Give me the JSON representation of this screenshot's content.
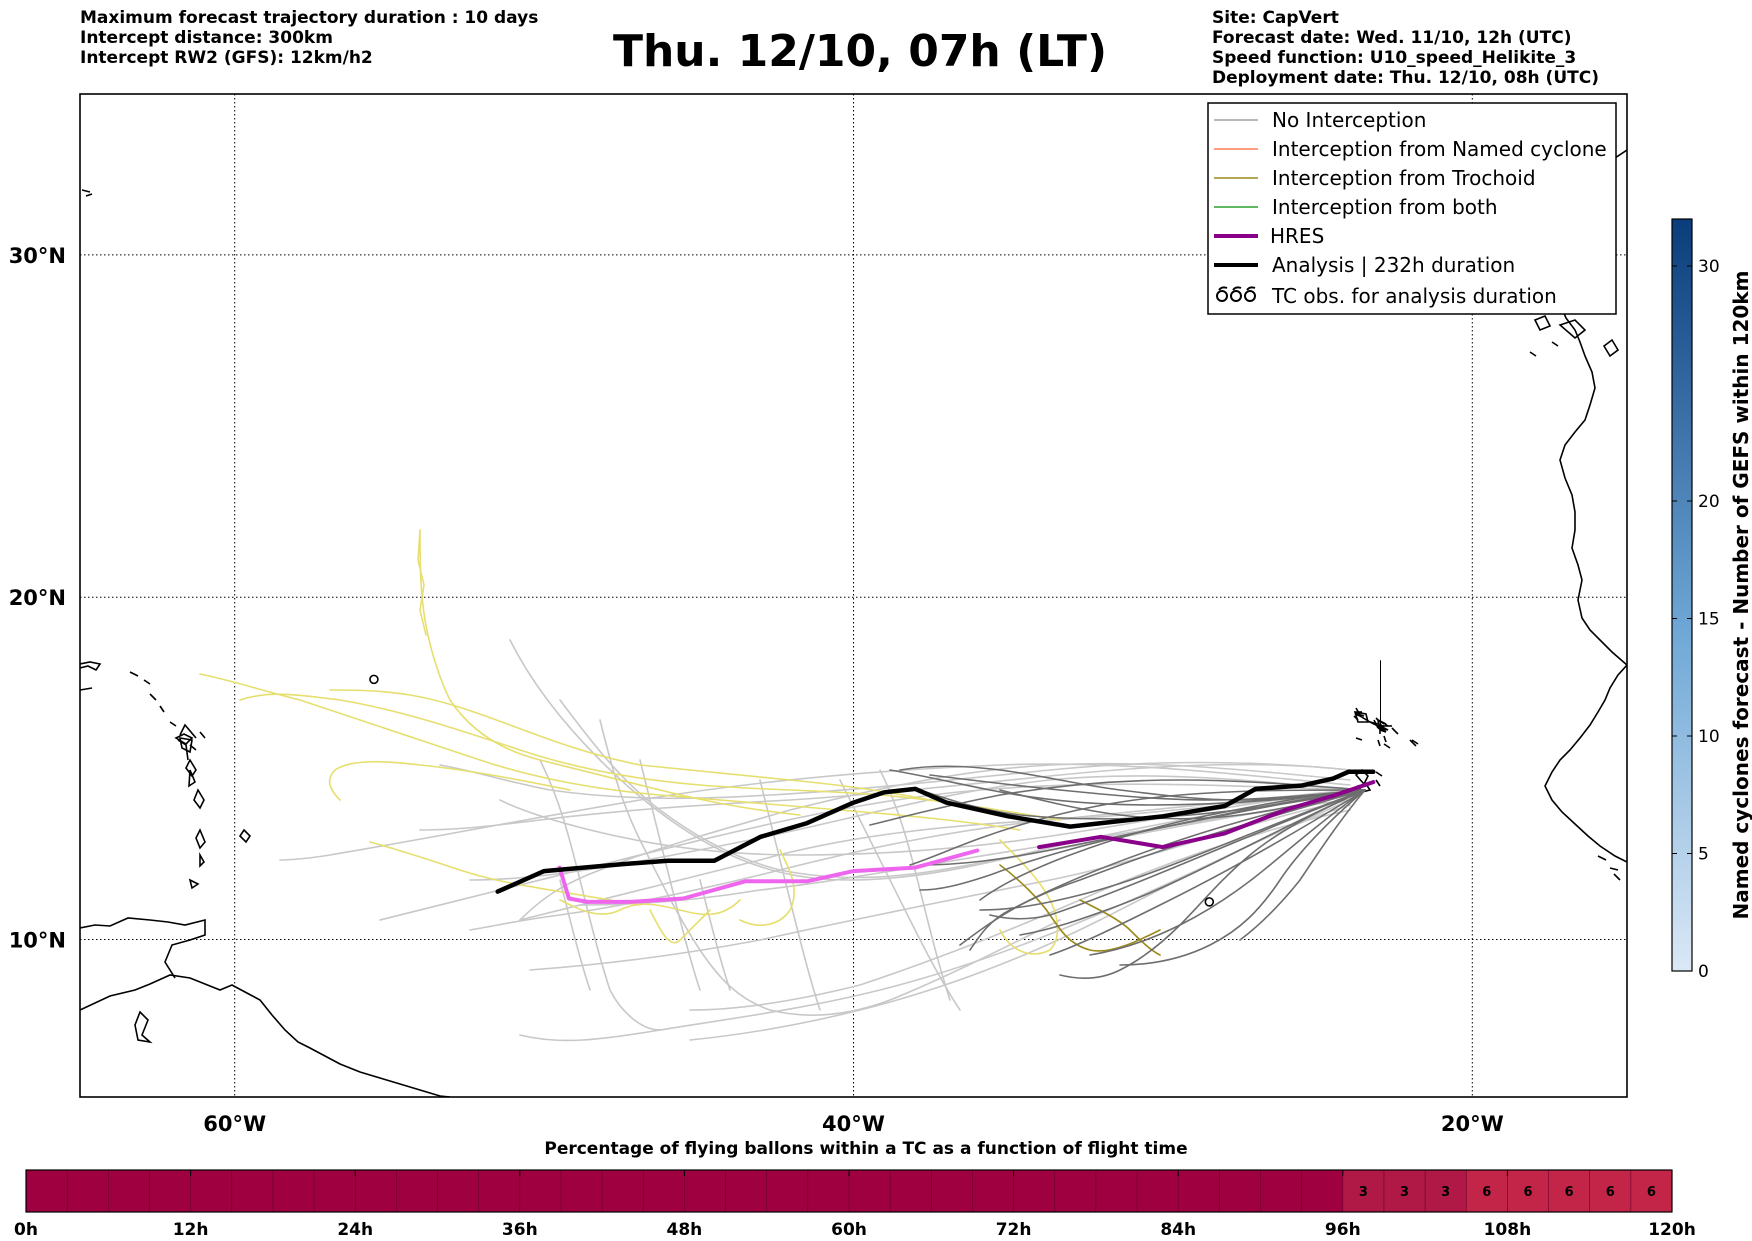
{
  "header": {
    "left_lines": [
      "Maximum forecast trajectory duration : 10 days",
      "Intercept distance: 300km",
      "Intercept RW2 (GFS):  12km/h2"
    ],
    "title": "Thu. 12/10, 07h (LT)",
    "right_lines": [
      "Site: CapVert",
      "Forecast date: Wed. 11/10, 12h (UTC)",
      "Speed function: U10_speed_Helikite_3",
      "Deployment date: Thu. 12/10, 08h (UTC)"
    ]
  },
  "map": {
    "lon_range": [
      -65,
      -15
    ],
    "lat_range": [
      5.4,
      34.7
    ],
    "lon_ticks": [
      {
        "value": -60,
        "label": "60°W"
      },
      {
        "value": -40,
        "label": "40°W"
      },
      {
        "value": -20,
        "label": "20°W"
      }
    ],
    "lat_ticks": [
      {
        "value": 30,
        "label": "30°N"
      },
      {
        "value": 20,
        "label": "20°N"
      },
      {
        "value": 10,
        "label": "10°N"
      }
    ],
    "gridlines": "dotted",
    "colors": {
      "no_interception": "#c8c8c8",
      "no_interception_dark": "#6e6e6e",
      "named_cyclone": "#ff7f50",
      "trochoid": "#9b8a18",
      "trochoid_light": "#e6df6e",
      "both": "#2ca02c",
      "hres": "#8b008b",
      "hres_light": "#ee66ee",
      "analysis": "#000000"
    },
    "legend": {
      "position": "top-right",
      "items": [
        {
          "label": "No Interception",
          "style": "gray-line"
        },
        {
          "label": "Interception from Named cyclone",
          "style": "orange-line"
        },
        {
          "label": "Interception from Trochoid",
          "style": "olive-line"
        },
        {
          "label": "Interception from both",
          "style": "green-line"
        },
        {
          "label": "HRES",
          "style": "purple-thick-line"
        },
        {
          "label": "Analysis | 232h duration",
          "style": "black-thick-line"
        },
        {
          "label": "TC obs. for analysis duration",
          "style": "cyclone-symbol-icon"
        }
      ]
    },
    "analysis_track": [
      [
        -51.5,
        11.4
      ],
      [
        -50,
        12
      ],
      [
        -47.5,
        12.2
      ],
      [
        -46,
        12.3
      ],
      [
        -44.5,
        12.3
      ],
      [
        -43,
        13
      ],
      [
        -41.5,
        13.4
      ],
      [
        -40,
        14
      ],
      [
        -39,
        14.3
      ],
      [
        -38,
        14.4
      ],
      [
        -37,
        14
      ],
      [
        -35,
        13.6
      ],
      [
        -33,
        13.3
      ],
      [
        -30,
        13.6
      ],
      [
        -28,
        13.9
      ],
      [
        -27,
        14.4
      ],
      [
        -25.5,
        14.5
      ],
      [
        -24.5,
        14.7
      ],
      [
        -24,
        14.9
      ],
      [
        -23.2,
        14.9
      ]
    ],
    "hres_track": [
      [
        -49.5,
        12.1
      ],
      [
        -49.2,
        11.2
      ],
      [
        -48.6,
        11.1
      ],
      [
        -47.2,
        11.1
      ],
      [
        -45.5,
        11.2
      ],
      [
        -43.5,
        11.7
      ],
      [
        -41.5,
        11.7
      ],
      [
        -40,
        12
      ],
      [
        -38,
        12.1
      ],
      [
        -36,
        12.6
      ],
      [
        -34,
        12.7
      ],
      [
        -32,
        13
      ],
      [
        -30,
        12.7
      ],
      [
        -28,
        13.1
      ],
      [
        -26,
        13.8
      ],
      [
        -24.5,
        14.2
      ],
      [
        -23.2,
        14.6
      ]
    ],
    "hres_dark_from_lon": -35,
    "tc_obs": [
      {
        "lon": -55.5,
        "lat": 17.6
      },
      {
        "lon": -28.5,
        "lat": 11.1
      }
    ],
    "cyclone_colorbar": {
      "label": "Named cyclones forecast - Number of GEFS within 120km",
      "range": [
        0,
        32
      ],
      "ticks": [
        0,
        5,
        10,
        15,
        20,
        30
      ],
      "color_low": "#dbe8f6",
      "color_high": "#0b3c7b"
    }
  },
  "flight_bar": {
    "title": "Percentage of flying ballons within a TC as a function of flight time",
    "tick_labels": [
      "0h",
      "12h",
      "24h",
      "36h",
      "48h",
      "60h",
      "72h",
      "84h",
      "96h",
      "108h",
      "120h"
    ],
    "max_hours": 120,
    "cell_hours": 3,
    "base_color": "#9e0040",
    "cells": [
      {
        "start_h": 96,
        "value": "3",
        "color": "#b01945"
      },
      {
        "start_h": 99,
        "value": "3",
        "color": "#b01945"
      },
      {
        "start_h": 102,
        "value": "3",
        "color": "#b01945"
      },
      {
        "start_h": 105,
        "value": "6",
        "color": "#c22548"
      },
      {
        "start_h": 108,
        "value": "6",
        "color": "#c22548"
      },
      {
        "start_h": 111,
        "value": "6",
        "color": "#c22548"
      },
      {
        "start_h": 114,
        "value": "6",
        "color": "#c22548"
      },
      {
        "start_h": 117,
        "value": "6",
        "color": "#c22548"
      }
    ]
  }
}
